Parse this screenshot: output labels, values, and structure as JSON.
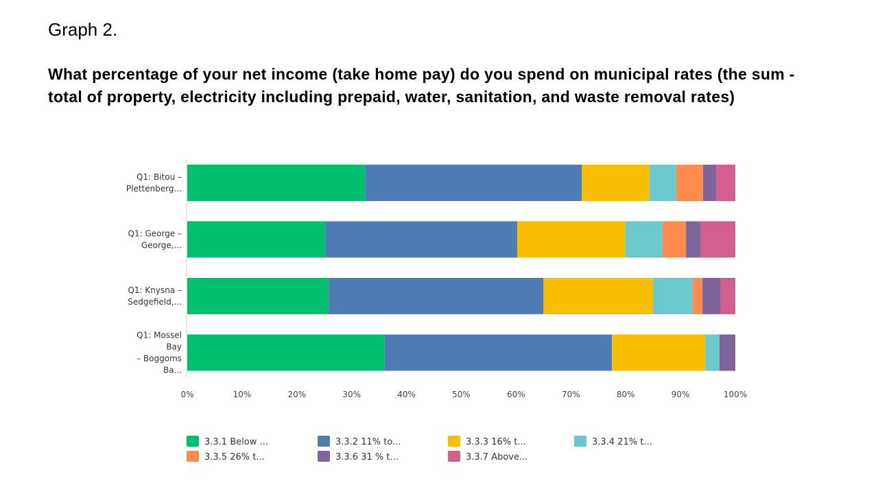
{
  "slide": {
    "label": "Graph 2.",
    "question": "What percentage of your net income (take home pay) do you spend on municipal rates (the sum -total of property, electricity including prepaid, water, sanitation, and waste removal rates)"
  },
  "chart_data": {
    "type": "bar",
    "orientation": "horizontal",
    "stacked": true,
    "percent_stacked": true,
    "categories": [
      [
        "Q1: Bitou –",
        "Plettenberg..."
      ],
      [
        "Q1: George –",
        "George,..."
      ],
      [
        "Q1: Knysna –",
        "Sedgefield,..."
      ],
      [
        "Q1: Mossel",
        "Bay",
        "– Boggoms",
        "Ba..."
      ]
    ],
    "series": [
      {
        "name": "3.3.1 Below ...",
        "color": "#00bf6f",
        "values": [
          32.5,
          25.2,
          25.8,
          36.0
        ]
      },
      {
        "name": "3.3.2 11% to...",
        "color": "#507cb6",
        "values": [
          39.5,
          35.0,
          39.2,
          41.5
        ]
      },
      {
        "name": "3.3.3 16% t...",
        "color": "#f9be00",
        "values": [
          12.3,
          19.7,
          20.0,
          17.0
        ]
      },
      {
        "name": "3.3.4 21% t...",
        "color": "#6bc8cd",
        "values": [
          4.9,
          6.8,
          7.2,
          2.6
        ]
      },
      {
        "name": "3.3.5 26% t...",
        "color": "#ff8b4f",
        "values": [
          4.9,
          4.3,
          1.8,
          0.0
        ]
      },
      {
        "name": "3.3.6 31 % t...",
        "color": "#7f659c",
        "values": [
          2.4,
          2.7,
          3.3,
          2.9
        ]
      },
      {
        "name": "3.3.7 Above...",
        "color": "#d25f90",
        "values": [
          3.5,
          6.3,
          2.7,
          0.0
        ]
      }
    ],
    "x_ticks": [
      "0%",
      "10%",
      "20%",
      "30%",
      "40%",
      "50%",
      "60%",
      "70%",
      "80%",
      "90%",
      "100%"
    ],
    "xlim": [
      0,
      100
    ],
    "grid": false,
    "legend_position": "bottom",
    "title": "",
    "xlabel": "",
    "ylabel": ""
  }
}
